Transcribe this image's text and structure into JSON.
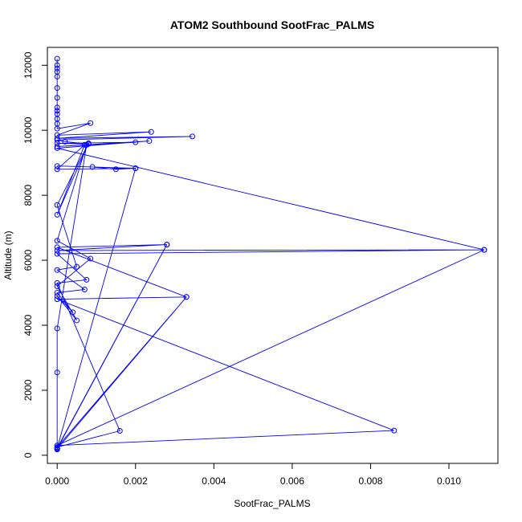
{
  "chart_data": {
    "type": "line",
    "title": "ATOM2 Southbound SootFrac_PALMS",
    "xlabel": "SootFrac_PALMS",
    "ylabel": "Altitude (m)",
    "xlim": [
      -0.00025,
      0.01125
    ],
    "ylim": [
      -250,
      12550
    ],
    "xticks": [
      0,
      0.002,
      0.004,
      0.006,
      0.008,
      0.01
    ],
    "xtick_labels": [
      "0.000",
      "0.002",
      "0.004",
      "0.006",
      "0.008",
      "0.010"
    ],
    "yticks": [
      0,
      2000,
      4000,
      6000,
      8000,
      10000,
      12000
    ],
    "ytick_labels": [
      "0",
      "2000",
      "4000",
      "6000",
      "8000",
      "10000",
      "12000"
    ],
    "grid": false,
    "markers": "open-circle",
    "color": "#0000ff",
    "series": [
      {
        "points": [
          [
            0,
            12200
          ],
          [
            0,
            12000
          ],
          [
            0,
            11900
          ],
          [
            0,
            11800
          ],
          [
            0,
            11650
          ],
          [
            0,
            11300
          ],
          [
            0,
            11000
          ],
          [
            0,
            10700
          ],
          [
            0,
            10600
          ],
          [
            0,
            10500
          ],
          [
            0,
            10350
          ],
          [
            0,
            10200
          ],
          [
            0,
            10050
          ],
          [
            0.00085,
            10220
          ],
          [
            0,
            9850
          ],
          [
            0.0024,
            9950
          ],
          [
            0,
            9750
          ],
          [
            0.00345,
            9810
          ],
          [
            0,
            9700
          ],
          [
            0.0002,
            9650
          ],
          [
            0.0008,
            9580
          ],
          [
            0,
            9600
          ],
          [
            0.002,
            9630
          ],
          [
            0,
            9500
          ],
          [
            0.00235,
            9670
          ],
          [
            0,
            9450
          ],
          [
            0.0109,
            6320
          ],
          [
            0,
            6300
          ],
          [
            0.0028,
            6480
          ],
          [
            0,
            6400
          ],
          [
            0.0033,
            4870
          ],
          [
            0,
            4800
          ],
          [
            0.0086,
            760
          ],
          [
            0,
            300
          ],
          [
            0.0109,
            6320
          ],
          [
            0,
            6200
          ],
          [
            0.00075,
            5400
          ],
          [
            0,
            5300
          ],
          [
            0.0016,
            750
          ],
          [
            0,
            250
          ],
          [
            0.0033,
            4870
          ],
          [
            0,
            200
          ],
          [
            0.0028,
            6480
          ],
          [
            0,
            220
          ],
          [
            0.002,
            8830
          ],
          [
            0,
            8900
          ],
          [
            0.0009,
            8870
          ],
          [
            0.0015,
            8800
          ],
          [
            0.002,
            8830
          ],
          [
            0,
            8800
          ],
          [
            0.0007,
            9550
          ],
          [
            0,
            7400
          ],
          [
            0.0008,
            9600
          ],
          [
            0,
            7700
          ],
          [
            0.0005,
            5800
          ],
          [
            0,
            5700
          ],
          [
            0.0007,
            5100
          ],
          [
            0,
            5000
          ],
          [
            0.0004,
            4400
          ],
          [
            0,
            4900
          ],
          [
            0.0005,
            4150
          ],
          [
            0,
            5200
          ],
          [
            0.00085,
            6050
          ],
          [
            0,
            6600
          ],
          [
            0.00075,
            9550
          ],
          [
            0,
            3900
          ],
          [
            0,
            2550
          ],
          [
            0,
            180
          ]
        ]
      }
    ]
  }
}
